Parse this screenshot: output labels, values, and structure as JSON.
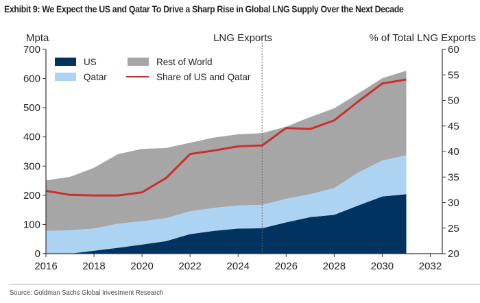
{
  "title": "Exhibit 9: We Expect the US and Qatar To Drive a Sharp Rise in Global LNG Supply Over the Next Decade",
  "source": "Source: Goldman Sachs Global Investment Research",
  "chart_data": {
    "type": "area",
    "title": "LNG Exports",
    "xlabel": "",
    "ylabel": "Mpta",
    "ylabel_right": "% of Total LNG Exports",
    "x": [
      2016,
      2017,
      2018,
      2019,
      2020,
      2021,
      2022,
      2023,
      2024,
      2025,
      2026,
      2027,
      2028,
      2029,
      2030,
      2031
    ],
    "xlim": [
      2016,
      2032.5
    ],
    "xticks": [
      2016,
      2018,
      2020,
      2022,
      2024,
      2026,
      2028,
      2030,
      2032
    ],
    "ylim": [
      0,
      700
    ],
    "yticks": [
      0,
      100,
      200,
      300,
      400,
      500,
      600,
      700
    ],
    "ylim_right": [
      20,
      60
    ],
    "yticks_right": [
      20,
      25,
      30,
      35,
      40,
      45,
      50,
      55,
      60
    ],
    "divider_x": 2025,
    "stacked": true,
    "series": [
      {
        "name": "US",
        "axis": "left",
        "kind": "area",
        "color": "#00335f",
        "values": [
          0,
          0,
          10,
          20,
          31,
          43,
          67,
          78,
          86,
          87,
          107,
          125,
          133,
          165,
          196,
          204
        ]
      },
      {
        "name": "Qatar",
        "axis": "left",
        "kind": "area",
        "color": "#acd3f1",
        "values": [
          78,
          80,
          76,
          83,
          80,
          79,
          78,
          79,
          79,
          80,
          81,
          79,
          92,
          113,
          123,
          133
        ]
      },
      {
        "name": "Rest of World",
        "axis": "left",
        "kind": "area",
        "color": "#a6a6a6",
        "values": [
          173,
          183,
          208,
          238,
          248,
          240,
          235,
          241,
          244,
          246,
          247,
          264,
          273,
          271,
          282,
          290
        ]
      },
      {
        "name": "Share of US and Qatar",
        "axis": "right",
        "kind": "line",
        "color": "#c8302f",
        "values": [
          32.3,
          31.5,
          31.4,
          31.4,
          32.0,
          34.8,
          39.5,
          40.2,
          41.0,
          41.2,
          44.6,
          44.4,
          46.1,
          49.8,
          53.3,
          54.1
        ]
      }
    ],
    "legend": {
      "placement": "top-left",
      "entries": [
        {
          "label": "US",
          "kind": "patch",
          "color": "#00335f"
        },
        {
          "label": "Qatar",
          "kind": "patch",
          "color": "#acd3f1"
        },
        {
          "label": "Rest of World",
          "kind": "patch",
          "color": "#a6a6a6"
        },
        {
          "label": "Share of US and Qatar",
          "kind": "line",
          "color": "#c8302f"
        }
      ]
    },
    "grid": false
  }
}
